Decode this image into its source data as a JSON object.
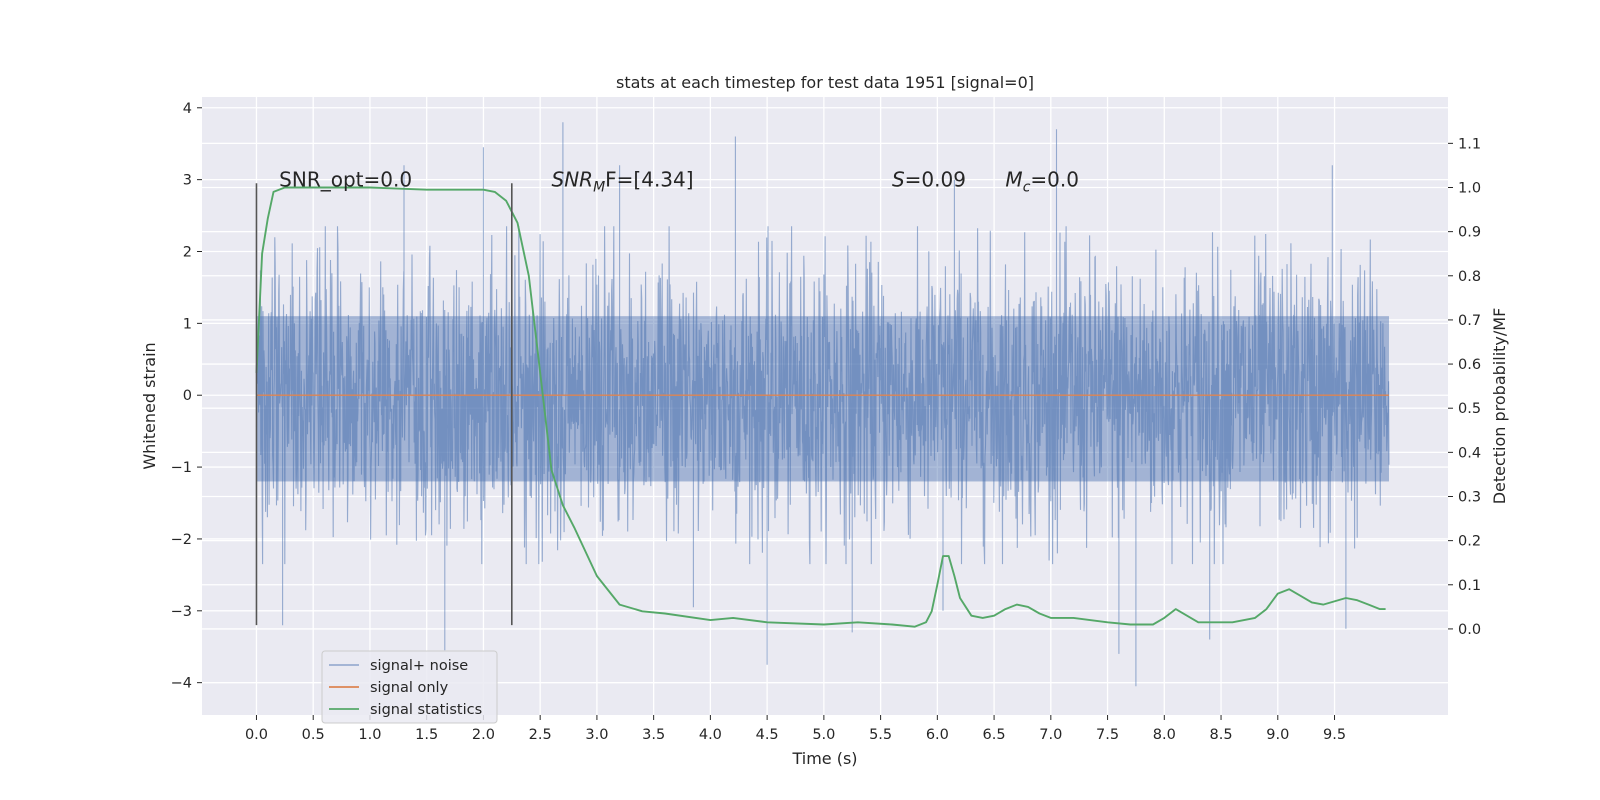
{
  "chart_data": {
    "type": "line",
    "title": "stats at each timestep for test data 1951 [signal=0]",
    "xlabel": "Time (s)",
    "ylabel": "Whitened strain",
    "y2label": "Detection probability/MF",
    "xlim": [
      -0.48,
      10.5
    ],
    "ylim": [
      -4.45,
      4.15
    ],
    "y2lim": [
      -0.195,
      1.205
    ],
    "x_ticks": [
      0.0,
      0.5,
      1.0,
      1.5,
      2.0,
      2.5,
      3.0,
      3.5,
      4.0,
      4.5,
      5.0,
      5.5,
      6.0,
      6.5,
      7.0,
      7.5,
      8.0,
      8.5,
      9.0,
      9.5
    ],
    "x_tick_labels": [
      "0.0",
      "0.5",
      "1.0",
      "1.5",
      "2.0",
      "2.5",
      "3.0",
      "3.5",
      "4.0",
      "4.5",
      "5.0",
      "5.5",
      "6.0",
      "6.5",
      "7.0",
      "7.5",
      "8.0",
      "8.5",
      "9.0",
      "9.5"
    ],
    "y_ticks": [
      -4,
      -3,
      -2,
      -1,
      0,
      1,
      2,
      3,
      4
    ],
    "y_tick_labels": [
      "−4",
      "−3",
      "−2",
      "−1",
      "0",
      "1",
      "2",
      "3",
      "4"
    ],
    "y2_ticks": [
      0.0,
      0.1,
      0.2,
      0.3,
      0.4,
      0.5,
      0.6,
      0.7,
      0.8,
      0.9,
      1.0,
      1.1
    ],
    "y2_tick_labels": [
      "0.0",
      "0.1",
      "0.2",
      "0.3",
      "0.4",
      "0.5",
      "0.6",
      "0.7",
      "0.8",
      "0.9",
      "1.0",
      "1.1"
    ],
    "grid": true,
    "legend_position": "lower-left",
    "vertical_markers": {
      "color": "#555555",
      "lines": [
        {
          "x": 0.0,
          "y_from": -3.2,
          "y_to": 2.95
        },
        {
          "x": 2.25,
          "y_from": -3.2,
          "y_to": 2.95
        }
      ]
    },
    "annotations": [
      {
        "name": "snr-opt",
        "x": 0.2,
        "y": 3.0,
        "text": "SNR_opt=0.0"
      },
      {
        "name": "snr-mf",
        "x": 2.6,
        "y": 3.0,
        "main": "SNR",
        "sub": "M",
        "rest": "F=[4.34]"
      },
      {
        "name": "s-stat",
        "x": 5.6,
        "y": 3.0,
        "main": "S",
        "rest": "=0.09"
      },
      {
        "name": "mc-stat",
        "x": 6.6,
        "y": 3.0,
        "main": "M",
        "sub": "c",
        "rest": "=0.0"
      }
    ],
    "series": [
      {
        "name": "signal+ noise",
        "color": "#4c72b0",
        "opacity": 0.5,
        "axis": "left",
        "kind": "noise",
        "x_range": [
          0.0,
          9.98
        ],
        "envelope_dense": [
          -1.2,
          1.1
        ],
        "envelope_typical": [
          -2.0,
          2.0
        ],
        "peaks": [
          {
            "x": 0.23,
            "y": -3.2
          },
          {
            "x": 1.66,
            "y": -3.55
          },
          {
            "x": 2.0,
            "y": 3.45
          },
          {
            "x": 2.7,
            "y": 3.8
          },
          {
            "x": 4.22,
            "y": 3.6
          },
          {
            "x": 4.5,
            "y": -3.75
          },
          {
            "x": 5.25,
            "y": -3.3
          },
          {
            "x": 6.05,
            "y": -3.0
          },
          {
            "x": 6.15,
            "y": 3.0
          },
          {
            "x": 7.05,
            "y": 3.7
          },
          {
            "x": 7.6,
            "y": -3.6
          },
          {
            "x": 7.75,
            "y": -4.05
          },
          {
            "x": 8.4,
            "y": -3.4
          },
          {
            "x": 9.6,
            "y": -3.25
          },
          {
            "x": 9.48,
            "y": 3.2
          },
          {
            "x": 1.3,
            "y": 3.2
          },
          {
            "x": 3.2,
            "y": 3.2
          },
          {
            "x": 3.85,
            "y": -2.95
          }
        ]
      },
      {
        "name": "signal only",
        "color": "#dd8452",
        "axis": "left",
        "x": [
          0.0,
          9.98
        ],
        "y": [
          0.0,
          0.0
        ]
      },
      {
        "name": "signal statistics",
        "color": "#55a868",
        "axis": "right",
        "x": [
          0.0,
          0.05,
          0.1,
          0.15,
          0.25,
          0.5,
          1.0,
          1.5,
          2.0,
          2.1,
          2.2,
          2.3,
          2.4,
          2.5,
          2.6,
          2.7,
          2.8,
          3.0,
          3.2,
          3.4,
          3.6,
          4.0,
          4.2,
          4.5,
          5.0,
          5.3,
          5.6,
          5.8,
          5.9,
          5.95,
          6.0,
          6.05,
          6.1,
          6.15,
          6.2,
          6.3,
          6.4,
          6.5,
          6.6,
          6.7,
          6.8,
          6.9,
          7.0,
          7.2,
          7.5,
          7.7,
          7.9,
          8.0,
          8.1,
          8.2,
          8.3,
          8.6,
          8.8,
          8.9,
          9.0,
          9.1,
          9.2,
          9.3,
          9.4,
          9.6,
          9.7,
          9.8,
          9.9,
          9.95
        ],
        "y": [
          0.58,
          0.85,
          0.93,
          0.99,
          1.0,
          1.0,
          1.0,
          0.995,
          0.995,
          0.99,
          0.97,
          0.92,
          0.8,
          0.58,
          0.36,
          0.28,
          0.23,
          0.12,
          0.055,
          0.04,
          0.035,
          0.02,
          0.025,
          0.015,
          0.01,
          0.015,
          0.01,
          0.005,
          0.015,
          0.04,
          0.1,
          0.165,
          0.165,
          0.12,
          0.07,
          0.03,
          0.025,
          0.03,
          0.045,
          0.055,
          0.05,
          0.035,
          0.025,
          0.025,
          0.015,
          0.01,
          0.01,
          0.025,
          0.045,
          0.03,
          0.015,
          0.015,
          0.025,
          0.045,
          0.08,
          0.09,
          0.075,
          0.06,
          0.055,
          0.07,
          0.065,
          0.055,
          0.045,
          0.045
        ]
      }
    ]
  }
}
